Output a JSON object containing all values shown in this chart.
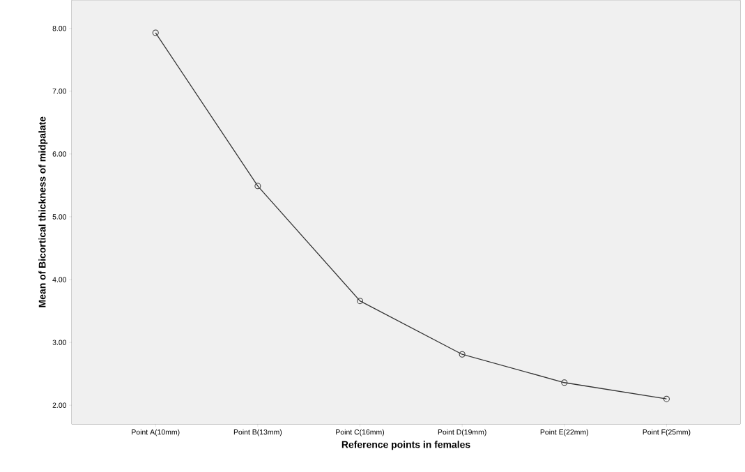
{
  "chart_data": {
    "type": "line",
    "xlabel": "Reference points in females",
    "ylabel": "Mean of Bicortical thickness of midpalate",
    "categories": [
      "Point A(10mm)",
      "Point B(13mm)",
      "Point C(16mm)",
      "Point D(19mm)",
      "Point E(22mm)",
      "Point F(25mm)"
    ],
    "series": [
      {
        "color": "#333333",
        "values": [
          7.93,
          5.49,
          3.66,
          2.81,
          2.36,
          2.1
        ]
      }
    ],
    "ylim": [
      1.7,
      8.45
    ],
    "yticks": [
      {
        "value": 2,
        "label": "2.00"
      },
      {
        "value": 3,
        "label": "3.00"
      },
      {
        "value": 4,
        "label": "4.00"
      },
      {
        "value": 5,
        "label": "5.00"
      },
      {
        "value": 6,
        "label": "6.00"
      },
      {
        "value": 7,
        "label": "7.00"
      },
      {
        "value": 8,
        "label": "8.00"
      }
    ],
    "marker": "circle",
    "line_style": "solid"
  }
}
